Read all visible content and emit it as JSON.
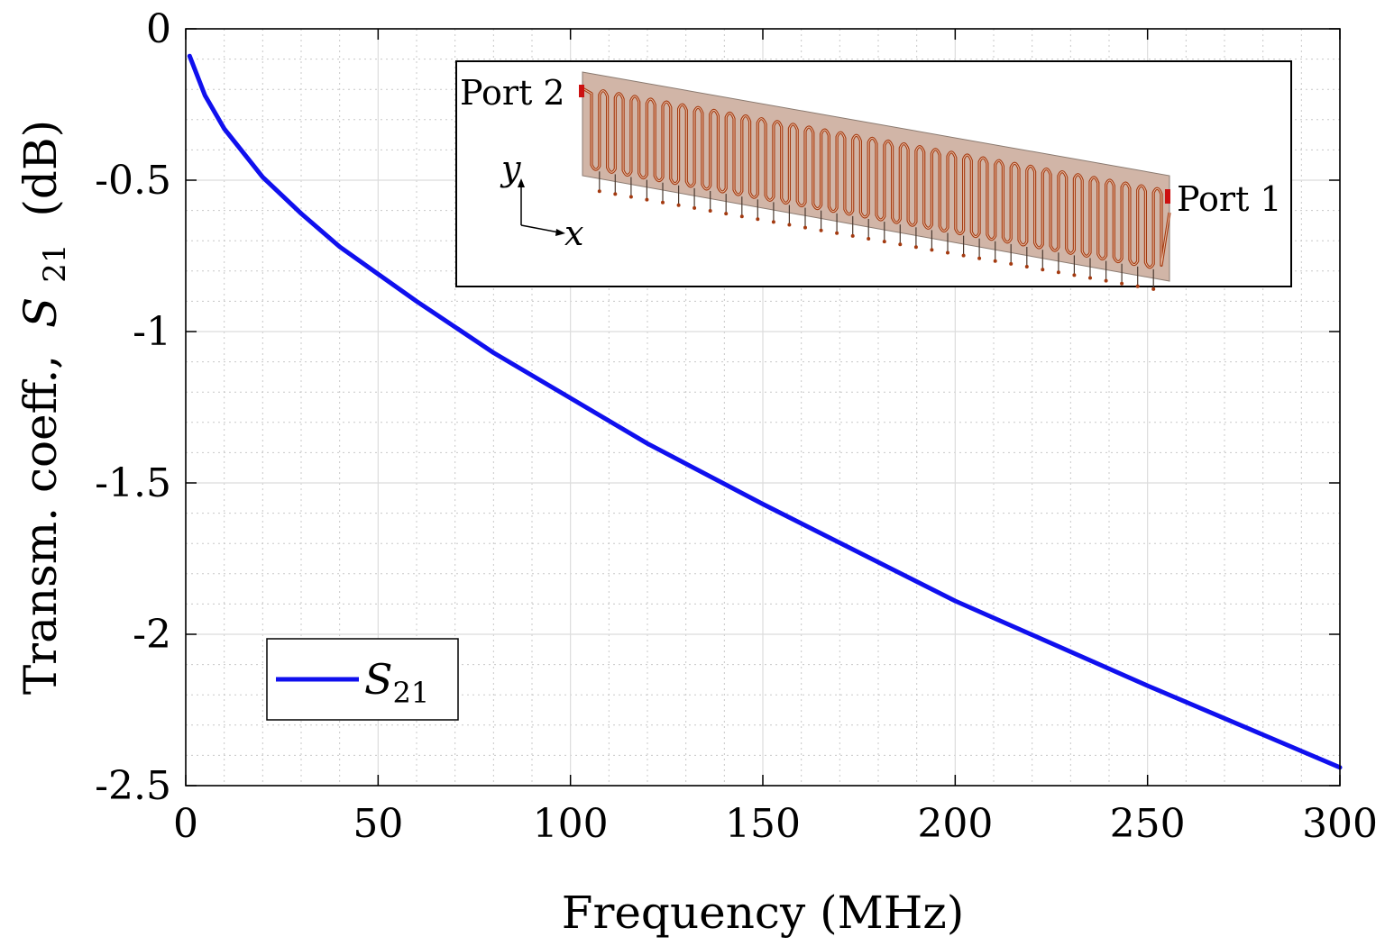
{
  "chart_data": {
    "type": "line",
    "xlabel": "Frequency (MHz)",
    "ylabel_prefix": "Transm. coeff.,",
    "ylabel_var": "S",
    "ylabel_sub": "21",
    "ylabel_suffix": "(dB)",
    "xlim": [
      0,
      300
    ],
    "ylim": [
      -2.5,
      0
    ],
    "x_ticks": [
      0,
      50,
      100,
      150,
      200,
      250,
      300
    ],
    "x_tick_labels": [
      "0",
      "50",
      "100",
      "150",
      "200",
      "250",
      "300"
    ],
    "y_ticks": [
      0,
      -0.5,
      -1,
      -1.5,
      -2,
      -2.5
    ],
    "y_tick_labels": [
      "0",
      "-0.5",
      "-1",
      "-1.5",
      "-2",
      "-2.5"
    ],
    "grid": true,
    "legend_location": "bottom-left",
    "series": [
      {
        "name": "S21",
        "legend_var": "S",
        "legend_sub": "21",
        "color": "#1010ee",
        "x": [
          1,
          5,
          10,
          20,
          30,
          40,
          50,
          60,
          80,
          100,
          120,
          150,
          200,
          250,
          300
        ],
        "y": [
          -0.09,
          -0.22,
          -0.33,
          -0.49,
          -0.61,
          -0.72,
          -0.81,
          -0.9,
          -1.07,
          -1.22,
          -1.37,
          -1.57,
          -1.89,
          -2.17,
          -2.44
        ]
      }
    ],
    "inset": {
      "port1_label": "Port 1",
      "port2_label": "Port 2",
      "axis_x": "x",
      "axis_y": "y",
      "meander_count": 36,
      "substrate_color": "#c9a898",
      "trace_color": "#a43a10",
      "port_color": "#cc1111"
    }
  }
}
